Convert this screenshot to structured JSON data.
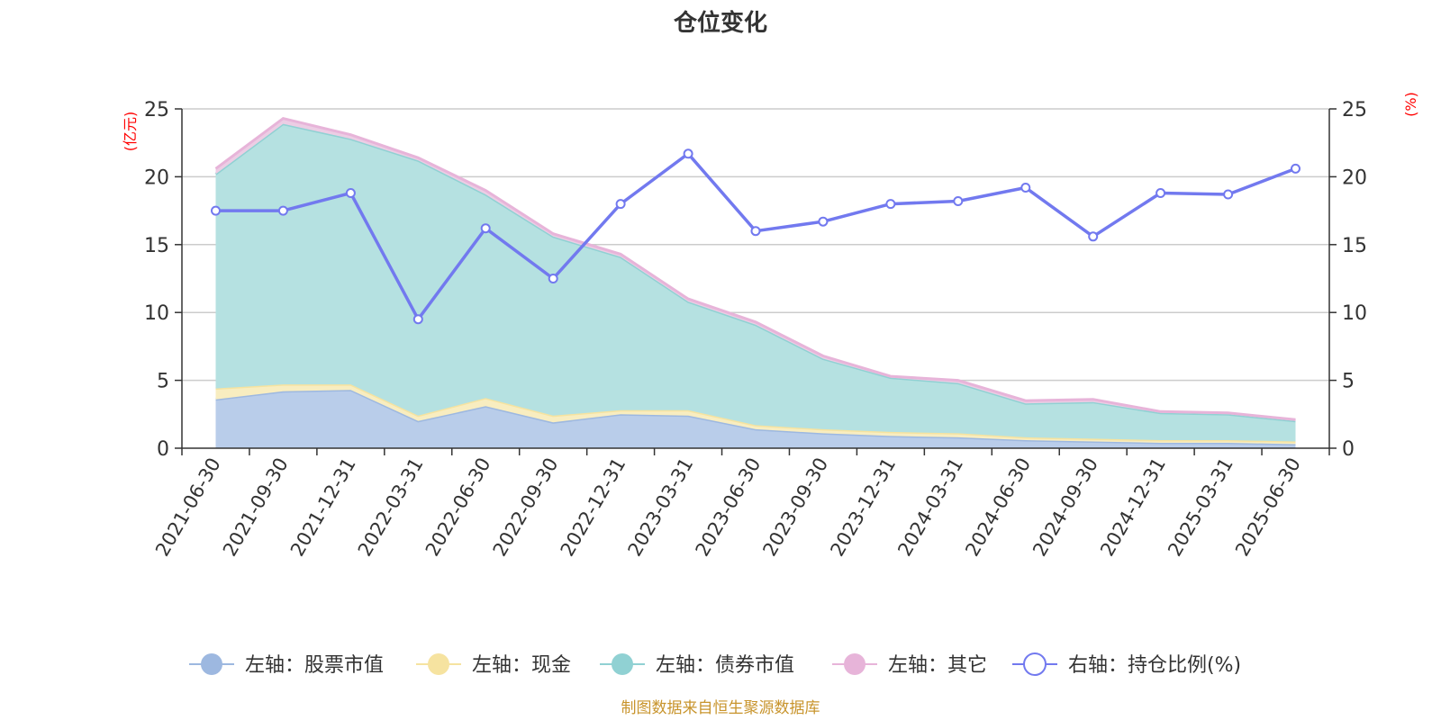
{
  "chart_data": {
    "type": "area",
    "title": "仓位变化",
    "left_axis_unit": "(亿元)",
    "right_axis_unit": "(%)",
    "left_ylim": [
      0,
      25
    ],
    "right_ylim": [
      0,
      25
    ],
    "left_ticks": [
      "0",
      "5",
      "10",
      "15",
      "20",
      "25"
    ],
    "right_ticks": [
      "0",
      "5",
      "10",
      "15",
      "20",
      "25"
    ],
    "grid": true,
    "legend_position": "bottom",
    "categories": [
      "2021-06-30",
      "2021-09-30",
      "2021-12-31",
      "2022-03-31",
      "2022-06-30",
      "2022-09-30",
      "2022-12-31",
      "2023-03-31",
      "2023-06-30",
      "2023-09-30",
      "2023-12-31",
      "2024-03-31",
      "2024-06-30",
      "2024-09-30",
      "2024-12-31",
      "2025-03-31",
      "2025-06-30"
    ],
    "series": [
      {
        "name": "左轴：股票市值",
        "axis": "left",
        "kind": "stacked-area",
        "color": "#9db8e0",
        "fill": "#b9cdea",
        "values": [
          3.6,
          4.2,
          4.3,
          2.0,
          3.1,
          1.9,
          2.5,
          2.4,
          1.4,
          1.1,
          0.9,
          0.8,
          0.6,
          0.5,
          0.4,
          0.4,
          0.3
        ]
      },
      {
        "name": "左轴：现金",
        "axis": "left",
        "kind": "stacked-area",
        "color": "#f6e3a0",
        "fill": "#f8edc0",
        "values": [
          0.8,
          0.5,
          0.4,
          0.4,
          0.6,
          0.5,
          0.3,
          0.4,
          0.3,
          0.3,
          0.3,
          0.3,
          0.2,
          0.2,
          0.2,
          0.2,
          0.2
        ]
      },
      {
        "name": "左轴：债券市值",
        "axis": "left",
        "kind": "stacked-area",
        "color": "#90d1d3",
        "fill": "#b5e1e1",
        "values": [
          15.8,
          19.2,
          18.1,
          18.8,
          15.0,
          13.2,
          11.3,
          8.0,
          7.4,
          5.2,
          4.0,
          3.7,
          2.5,
          2.7,
          2.0,
          1.9,
          1.5
        ]
      },
      {
        "name": "左轴：其它",
        "axis": "left",
        "kind": "stacked-area",
        "color": "#e7b4d9",
        "fill": "#eccde4",
        "values": [
          0.4,
          0.4,
          0.3,
          0.2,
          0.3,
          0.2,
          0.2,
          0.2,
          0.2,
          0.2,
          0.1,
          0.2,
          0.2,
          0.2,
          0.1,
          0.1,
          0.1
        ]
      },
      {
        "name": "右轴：持仓比例(%)",
        "axis": "right",
        "kind": "line",
        "color": "#7279ef",
        "values": [
          17.5,
          17.5,
          18.8,
          9.5,
          16.2,
          12.5,
          18.0,
          21.7,
          16.0,
          16.7,
          18.0,
          18.2,
          19.2,
          15.6,
          18.8,
          18.7,
          20.6
        ]
      }
    ]
  },
  "footer": {
    "source": "制图数据来自恒生聚源数据库",
    "color": "#c8942c"
  }
}
